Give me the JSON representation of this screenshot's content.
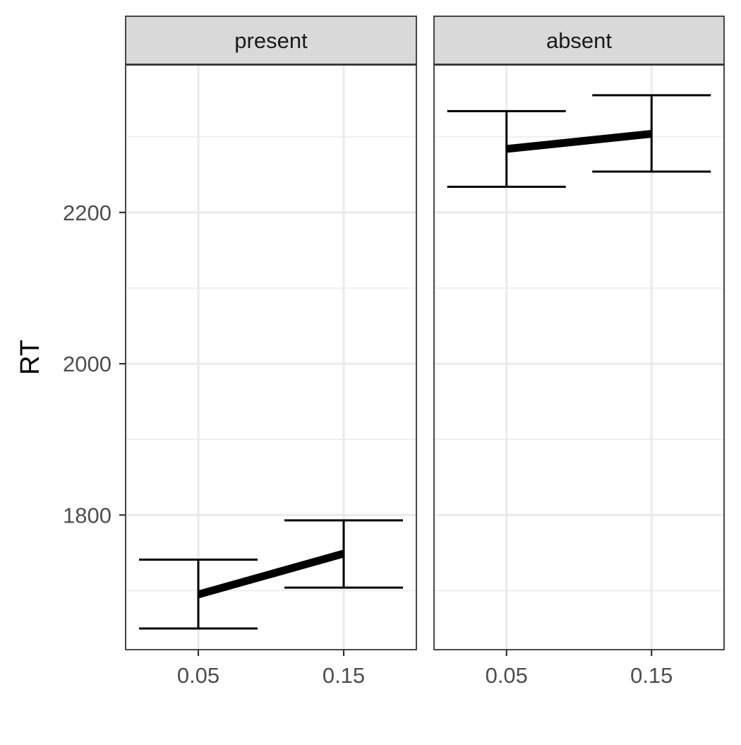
{
  "chart_data": {
    "type": "line",
    "ylabel": "RT",
    "xlabel": "",
    "x_ticks": [
      0.05,
      0.15
    ],
    "y_ticks": [
      1800,
      2000,
      2200
    ],
    "ylim": [
      1622,
      2395
    ],
    "xlim": [
      -0.0,
      0.2
    ],
    "grid": true,
    "panels": [
      {
        "name": "present",
        "x": [
          0.05,
          0.15
        ],
        "y": [
          1695,
          1749
        ],
        "ymin": [
          1650,
          1704
        ],
        "ymax": [
          1741,
          1793
        ]
      },
      {
        "name": "absent",
        "x": [
          0.05,
          0.15
        ],
        "y": [
          2284,
          2304
        ],
        "ymin": [
          2234,
          2254
        ],
        "ymax": [
          2334,
          2355
        ]
      }
    ],
    "colors": {
      "line": "#000000",
      "errorbar": "#000000",
      "grid": "#ebebeb",
      "strip_fill": "#d9d9d9",
      "border": "#333333"
    }
  }
}
